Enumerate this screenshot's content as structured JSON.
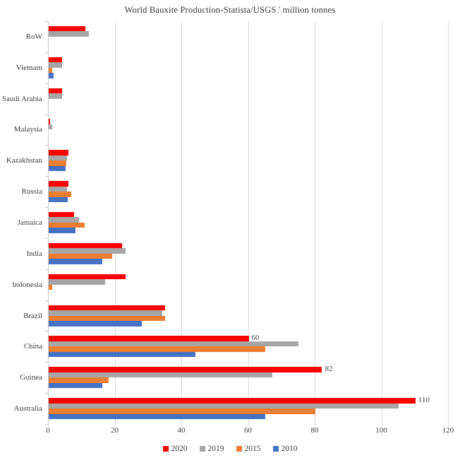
{
  "title": "World Bauxite Production-Statista/USGS ' million tonnes",
  "chart_data": {
    "type": "bar",
    "orientation": "horizontal",
    "title": "World Bauxite Production-Statista/USGS ' million tonnes",
    "xlabel": "",
    "ylabel": "",
    "xlim": [
      0,
      120
    ],
    "xticks": [
      0,
      20,
      40,
      60,
      80,
      100,
      120
    ],
    "grid": "vertical",
    "legend_position": "bottom",
    "categories_top_to_bottom": [
      "RoW",
      "Vietnam",
      "Saudi Arabia",
      "Malaysia",
      "Kazakhstan",
      "Russia",
      "Jamaica",
      "India",
      "Indonesia",
      "Brazil",
      "China",
      "Guinea",
      "Australia"
    ],
    "series": [
      {
        "name": "2020",
        "color": "#fe0000",
        "values": [
          11,
          4,
          4,
          0.5,
          6,
          6,
          7.6,
          22,
          23,
          35,
          60,
          82,
          110
        ]
      },
      {
        "name": "2019",
        "color": "#a6a6a6",
        "values": [
          12,
          4,
          4,
          1,
          5.5,
          5.4,
          9,
          23,
          17,
          34,
          75,
          67,
          105
        ]
      },
      {
        "name": "2015",
        "color": "#ed7d31",
        "values": [
          0,
          1,
          0,
          0,
          5.2,
          6.7,
          10.7,
          19,
          1,
          35,
          65,
          18,
          80
        ]
      },
      {
        "name": "2010",
        "color": "#4472c4",
        "values": [
          0,
          1.5,
          0,
          0,
          5,
          5.8,
          8,
          16,
          0,
          28,
          44,
          16,
          65
        ]
      }
    ],
    "bar_labels": [
      {
        "category": "China",
        "series": "2020",
        "text": "60"
      },
      {
        "category": "Guinea",
        "series": "2020",
        "text": "82"
      },
      {
        "category": "Australia",
        "series": "2020",
        "text": "110"
      }
    ],
    "colors": {
      "gridline": "#d9d9d9",
      "axis": "#c9c9c9",
      "text": "#3d3d3d"
    }
  }
}
